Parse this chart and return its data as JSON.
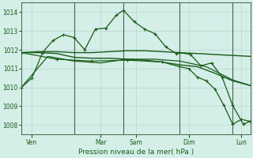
{
  "bg_color": "#d4eee8",
  "plot_bg_color": "#d4eee8",
  "line_color": "#1a5c1a",
  "grid_color": "#b8d8cc",
  "vline_color": "#446644",
  "xlabel_text": "Pression niveau de la mer( hPa )",
  "ylim": [
    1007.5,
    1014.5
  ],
  "yticks": [
    1008,
    1009,
    1010,
    1011,
    1012,
    1013,
    1014
  ],
  "xlim": [
    0,
    13
  ],
  "day_positions": [
    0.6,
    4.5,
    6.5,
    9.5,
    12.5
  ],
  "day_labels": [
    "Ven",
    "Mar",
    "Sam",
    "Dim",
    "Lun"
  ],
  "vline_positions": [
    3.0,
    5.8,
    9.0,
    12.0
  ],
  "series1_x": [
    0,
    0.6,
    1.2,
    1.8,
    2.4,
    3.0,
    3.6,
    4.2,
    4.8,
    5.4,
    5.8,
    6.4,
    7.0,
    7.6,
    8.2,
    8.8,
    9.0,
    9.6,
    10.2,
    10.8,
    11.4,
    12.0,
    12.6,
    13.0
  ],
  "series1_y": [
    1010.0,
    1010.5,
    1011.85,
    1012.5,
    1012.8,
    1012.65,
    1012.0,
    1013.1,
    1013.15,
    1013.85,
    1014.1,
    1013.5,
    1013.1,
    1012.85,
    1012.15,
    1011.8,
    1011.85,
    1011.75,
    1011.15,
    1011.3,
    1010.55,
    1009.05,
    1008.05,
    1008.2
  ],
  "series2_x": [
    0,
    1,
    2,
    3,
    4,
    5,
    6,
    7,
    8,
    9,
    10,
    11,
    12,
    13
  ],
  "series2_y": [
    1011.85,
    1011.9,
    1011.9,
    1011.85,
    1011.85,
    1011.9,
    1011.95,
    1011.95,
    1011.9,
    1011.85,
    1011.8,
    1011.75,
    1011.7,
    1011.65
  ],
  "series3_x": [
    0,
    1,
    2,
    3,
    4,
    5,
    6,
    7,
    8,
    9,
    10,
    11,
    12,
    13
  ],
  "series3_y": [
    1011.85,
    1011.85,
    1011.8,
    1011.6,
    1011.55,
    1011.55,
    1011.5,
    1011.45,
    1011.35,
    1011.2,
    1011.1,
    1010.75,
    1010.35,
    1010.1
  ],
  "series4_x": [
    0,
    1.5,
    3.0,
    4.5,
    6.0,
    7.5,
    9.0,
    10.5,
    12.0,
    13.0
  ],
  "series4_y": [
    1010.0,
    1011.65,
    1011.4,
    1011.3,
    1011.5,
    1011.5,
    1011.4,
    1011.1,
    1010.4,
    1010.1
  ],
  "series5_x": [
    0,
    2,
    4,
    6,
    8,
    9,
    9.5,
    10,
    10.5,
    11,
    11.5,
    12,
    12.5,
    13
  ],
  "series5_y": [
    1011.85,
    1011.5,
    1011.4,
    1011.45,
    1011.35,
    1011.1,
    1011.0,
    1010.55,
    1010.35,
    1009.9,
    1009.05,
    1008.05,
    1008.3,
    1008.2
  ]
}
